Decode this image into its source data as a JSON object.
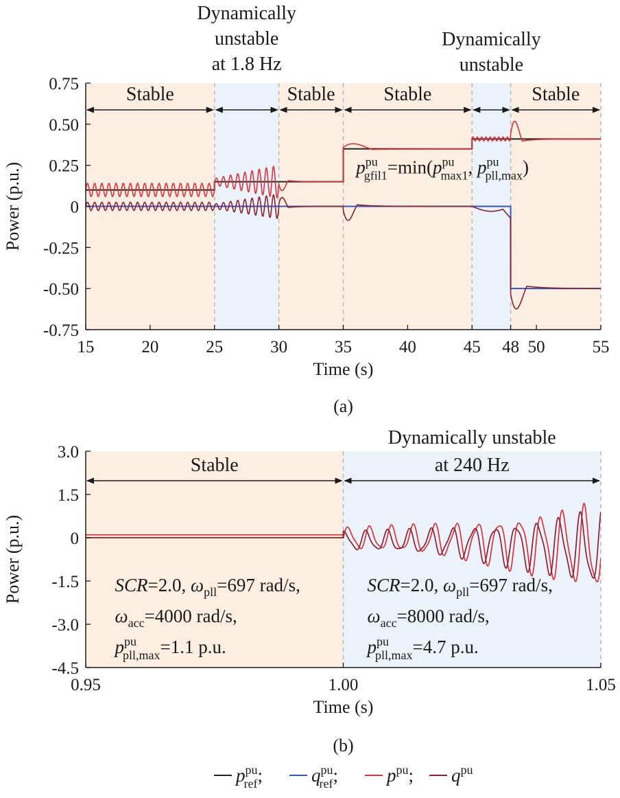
{
  "colors": {
    "stable_bg": "#fdeee2",
    "unstable_bg": "#ecf2f9",
    "p_ref": "#222222",
    "q_ref": "#2f55c6",
    "p": "#e0303a",
    "q": "#8a1f2e",
    "divider": "#b8b8b8"
  },
  "legend": {
    "items": [
      {
        "symbol": "p",
        "sup": "pu",
        "sub": "ref",
        "sep": ";",
        "color_key": "p_ref"
      },
      {
        "symbol": "q",
        "sup": "pu",
        "sub": "ref",
        "sep": ";",
        "color_key": "q_ref"
      },
      {
        "symbol": "p",
        "sup": "pu",
        "sub": "",
        "sep": ";",
        "color_key": "p"
      },
      {
        "symbol": "q",
        "sup": "pu",
        "sub": "",
        "sep": "",
        "color_key": "q"
      }
    ]
  },
  "chart_data": [
    {
      "type": "line",
      "caption": "(a)",
      "xlabel": "Time (s)",
      "ylabel": "Power (p.u.)",
      "xlim": [
        15,
        55
      ],
      "ylim": [
        -0.75,
        0.75
      ],
      "xticks": [
        15,
        20,
        25,
        30,
        35,
        40,
        45,
        48,
        50,
        55
      ],
      "xtick_labels": [
        "15",
        "20",
        "25",
        "30",
        "35",
        "40",
        "45",
        "48",
        "50",
        "55"
      ],
      "yticks": [
        0.75,
        0.5,
        0.25,
        0,
        -0.25,
        -0.5,
        -0.75
      ],
      "ytick_labels": [
        "0.75",
        "0.50",
        "0.25",
        "0",
        "-0.25",
        "-0.50",
        "-0.75"
      ],
      "regions": [
        {
          "x0": 15,
          "x1": 25,
          "state": "stable",
          "label": "Stable"
        },
        {
          "x0": 25,
          "x1": 30,
          "state": "unstable",
          "label": ""
        },
        {
          "x0": 30,
          "x1": 35,
          "state": "stable",
          "label": "Stable"
        },
        {
          "x0": 35,
          "x1": 45,
          "state": "stable",
          "label": "Stable"
        },
        {
          "x0": 45,
          "x1": 48,
          "state": "unstable",
          "label": ""
        },
        {
          "x0": 48,
          "x1": 55,
          "state": "stable",
          "label": "Stable"
        }
      ],
      "top_labels": [
        {
          "lines": [
            "Dynamically",
            "unstable",
            "at 1.8 Hz"
          ],
          "x_center": 27.5
        },
        {
          "lines": [
            "Dynamically",
            "unstable"
          ],
          "x_center": 46.5
        }
      ],
      "annotation": {
        "parts": [
          {
            "t": "p",
            "italic": true
          },
          {
            "sup": "pu",
            "sub": "gfil1"
          },
          {
            "t": "=min("
          },
          {
            "t": "p",
            "italic": true
          },
          {
            "sup": "pu",
            "sub": "max1"
          },
          {
            "t": ", "
          },
          {
            "t": "p",
            "italic": true
          },
          {
            "sup": "pu",
            "sub": "pll,max"
          },
          {
            "t": ")"
          }
        ],
        "x": 36.0,
        "y": 0.2
      },
      "series": [
        {
          "key": "p_ref",
          "steps": [
            [
              15,
              0.1
            ],
            [
              25,
              0.15
            ],
            [
              35,
              0.35
            ],
            [
              45,
              0.41
            ],
            [
              55,
              0.41
            ]
          ]
        },
        {
          "key": "q_ref",
          "steps": [
            [
              15,
              0.0
            ],
            [
              48,
              -0.5
            ],
            [
              55,
              -0.5
            ]
          ]
        },
        {
          "key": "p",
          "base": [
            [
              15,
              0.1
            ],
            [
              25,
              0.15
            ],
            [
              35,
              0.35
            ],
            [
              45,
              0.41
            ],
            [
              55,
              0.41
            ]
          ],
          "osc": [
            {
              "x0": 15,
              "x1": 25,
              "amp": 0.04,
              "freq": 1.8,
              "grow": 0.0
            },
            {
              "x0": 25,
              "x1": 30,
              "amp": 0.02,
              "freq": 1.8,
              "grow": 1.0
            }
          ],
          "overshoot": [
            {
              "x": 30,
              "amp": -0.07,
              "tau": 0.8
            },
            {
              "x": 35,
              "amp": 0.04,
              "tau": 2.5
            },
            {
              "x": 48,
              "amp": 0.14,
              "tau": 1.0
            }
          ]
        },
        {
          "key": "q",
          "base": [
            [
              15,
              0.0
            ],
            [
              48,
              -0.5
            ],
            [
              55,
              -0.5
            ]
          ],
          "osc": [
            {
              "x0": 15,
              "x1": 25,
              "amp": 0.025,
              "freq": 1.8,
              "grow": 0.0
            },
            {
              "x0": 25,
              "x1": 30,
              "amp": 0.015,
              "freq": 1.8,
              "grow": 1.0
            }
          ],
          "overshoot": [
            {
              "x": 30,
              "amp": 0.07,
              "tau": 0.8
            },
            {
              "x": 35,
              "amp": -0.11,
              "tau": 1.2
            },
            {
              "x": 48,
              "amp": -0.16,
              "tau": 1.4
            }
          ]
        }
      ]
    },
    {
      "type": "line",
      "caption": "(b)",
      "xlabel": "Time (s)",
      "ylabel": "Power (p.u.)",
      "xlim": [
        0.95,
        1.05
      ],
      "ylim": [
        -4.5,
        3.0
      ],
      "xticks": [
        0.95,
        1.0,
        1.05
      ],
      "xtick_labels": [
        "0.95",
        "1.00",
        "1.05"
      ],
      "yticks": [
        3.0,
        1.5,
        0,
        -1.5,
        -3.0,
        -4.5
      ],
      "ytick_labels": [
        "3.0",
        "1.5",
        "0",
        "-1.5",
        "-3.0",
        "-4.5"
      ],
      "regions": [
        {
          "x0": 0.95,
          "x1": 1.0,
          "state": "stable",
          "label": "Stable"
        },
        {
          "x0": 1.0,
          "x1": 1.05,
          "state": "unstable",
          "label": "Dynamically unstable|at 240 Hz"
        }
      ],
      "text_blocks": [
        {
          "x": 0.953,
          "lines": [
            [
              {
                "t": "SCR",
                "italic": true
              },
              {
                "t": "=2.0, "
              },
              {
                "t": "ω",
                "italic": true
              },
              {
                "sub": "pll"
              },
              {
                "t": "=697 rad/s,"
              }
            ],
            [
              {
                "t": "ω",
                "italic": true
              },
              {
                "sub": "acc"
              },
              {
                "t": "=4000 rad/s,"
              }
            ],
            [
              {
                "t": "p",
                "italic": true
              },
              {
                "sup": "pu",
                "sub": "pll,max"
              },
              {
                "t": "=1.1 p.u."
              }
            ]
          ]
        },
        {
          "x": 1.002,
          "lines": [
            [
              {
                "t": "SCR",
                "italic": true
              },
              {
                "t": "=2.0, "
              },
              {
                "t": "ω",
                "italic": true
              },
              {
                "sub": "pll"
              },
              {
                "t": "=697 rad/s,"
              }
            ],
            [
              {
                "t": "ω",
                "italic": true
              },
              {
                "sub": "acc"
              },
              {
                "t": "=8000 rad/s,"
              }
            ],
            [
              {
                "t": "p",
                "italic": true
              },
              {
                "sup": "pu",
                "sub": "pll,max"
              },
              {
                "t": "=4.7 p.u."
              }
            ]
          ]
        }
      ],
      "series": [
        {
          "key": "p",
          "steady": [
            0.95,
            1.0,
            0.1
          ],
          "osc_freq": 240,
          "osc_x0": 1.0,
          "osc_x1": 1.05,
          "amp_start": 0.35,
          "amp_end": 1.4
        },
        {
          "key": "q",
          "steady": [
            0.95,
            1.0,
            0.0
          ],
          "osc_freq": 240,
          "osc_x0": 1.0,
          "osc_x1": 1.05,
          "amp_start": 0.3,
          "amp_end": 1.2
        }
      ]
    }
  ]
}
